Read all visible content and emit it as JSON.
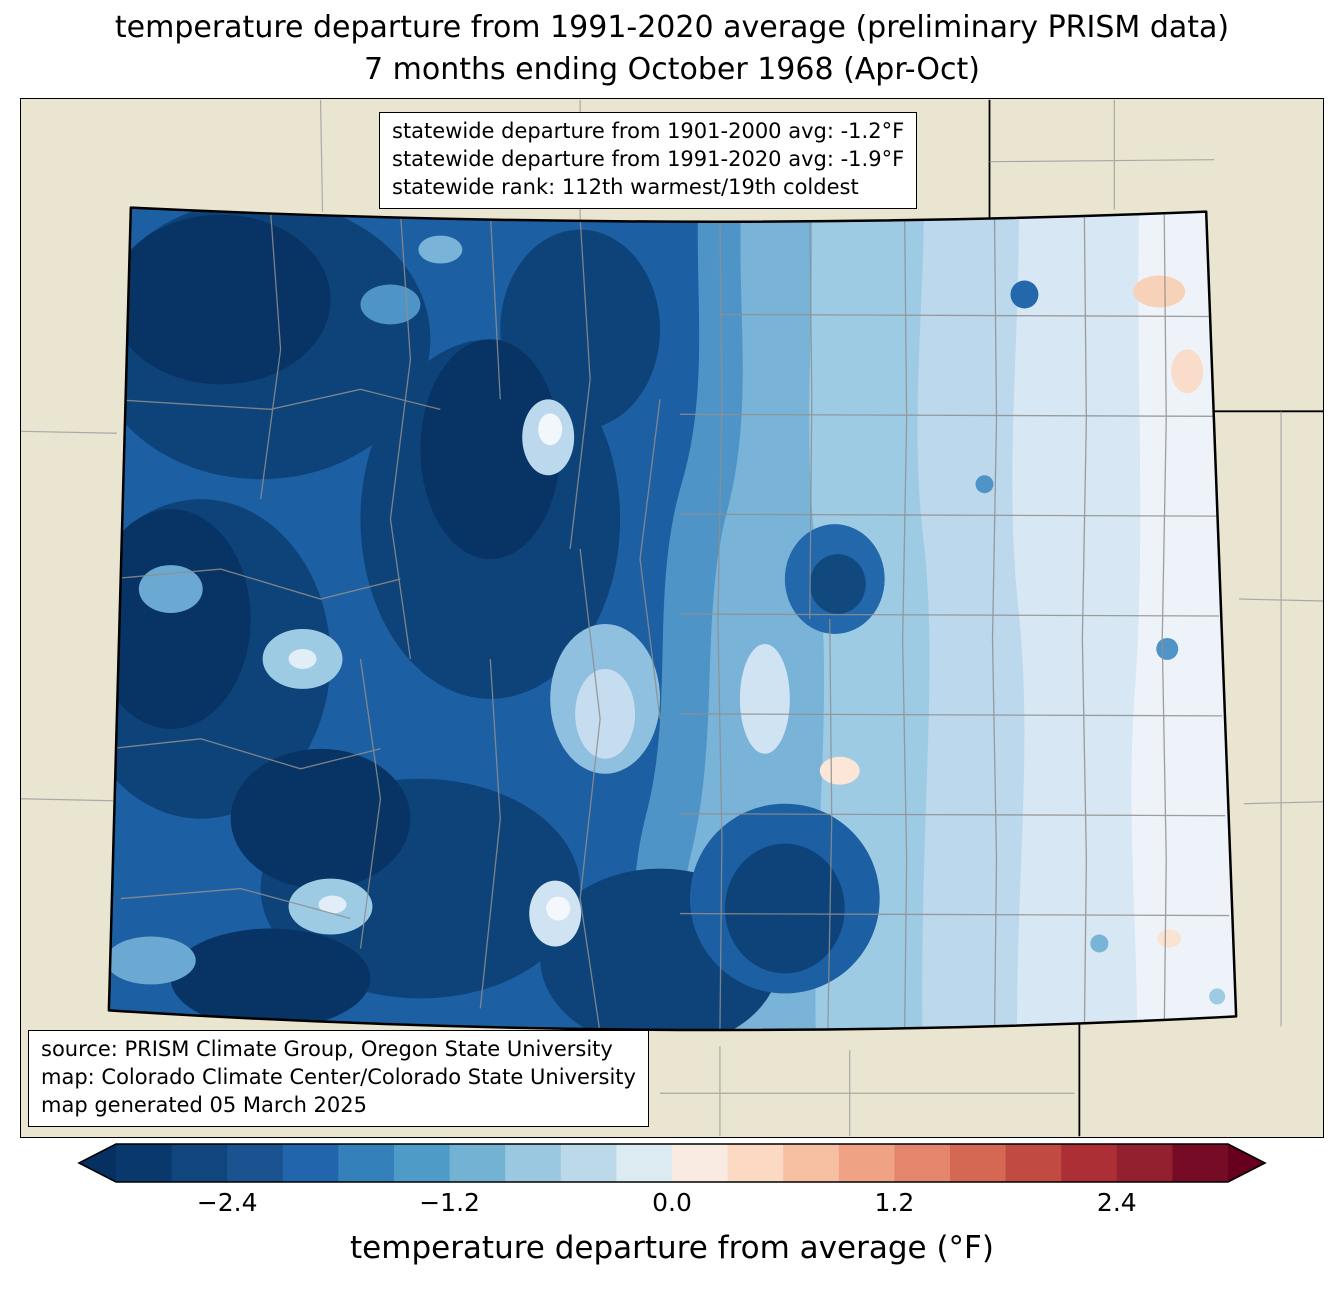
{
  "title": {
    "line1": "temperature departure from 1991-2020 average (preliminary PRISM data)",
    "line2": "7 months ending October 1968 (Apr-Oct)"
  },
  "stats_box": {
    "lines": [
      "statewide departure from 1901-2000 avg: -1.2°F",
      "statewide departure from 1991-2020 avg: -1.9°F",
      "statewide rank: 112th warmest/19th coldest"
    ]
  },
  "source_box": {
    "lines": [
      "source: PRISM Climate Group, Oregon State University",
      "map: Colorado Climate Center/Colorado State University",
      "map generated 05 March 2025"
    ]
  },
  "colorbar": {
    "label": "temperature departure from average (°F)",
    "range": [
      -3.0,
      3.0
    ],
    "ticks": [
      {
        "label": "−2.4",
        "value": -2.4
      },
      {
        "label": "−1.2",
        "value": -1.2
      },
      {
        "label": "0.0",
        "value": 0.0
      },
      {
        "label": "1.2",
        "value": 1.2
      },
      {
        "label": "2.4",
        "value": 2.4
      }
    ],
    "segment_colors": [
      "#09386d",
      "#11457e",
      "#1a5390",
      "#2166ac",
      "#3480bb",
      "#4f9bc7",
      "#74b2d4",
      "#9ac8e0",
      "#bcd9ea",
      "#dceaf2",
      "#f9ebe1",
      "#fbd9c2",
      "#f7bfa1",
      "#f0a285",
      "#e3866b",
      "#d46852",
      "#c14a42",
      "#ac2f36",
      "#92202e",
      "#750b24"
    ],
    "under_color": "#053061",
    "over_color": "#67001f"
  },
  "map": {
    "region": "Colorado",
    "land_color": "#e9e5d1",
    "state_border_color": "#000000",
    "county_line_color": "#8f8f8f"
  },
  "chart_data": {
    "type": "heatmap",
    "title": "temperature departure from 1991-2020 average (preliminary PRISM data), 7 months ending October 1968 (Apr-Oct)",
    "statewide_departure_from_1901_2000_avg_F": -1.2,
    "statewide_departure_from_1991_2020_avg_F": -1.9,
    "statewide_rank": "112th warmest/19th coldest",
    "colorbar_label": "temperature departure from average (°F)",
    "colorbar_ticks": [
      -2.4,
      -1.2,
      0.0,
      1.2,
      2.4
    ],
    "colorbar_range": [
      -3.0,
      3.0
    ],
    "spatial_pattern": "strong cold departures (below -2.4F) over western and central Colorado mountains, moderate cold over Front Range, weak cold to near-zero over far eastern plains with small warm spots in northeast"
  }
}
